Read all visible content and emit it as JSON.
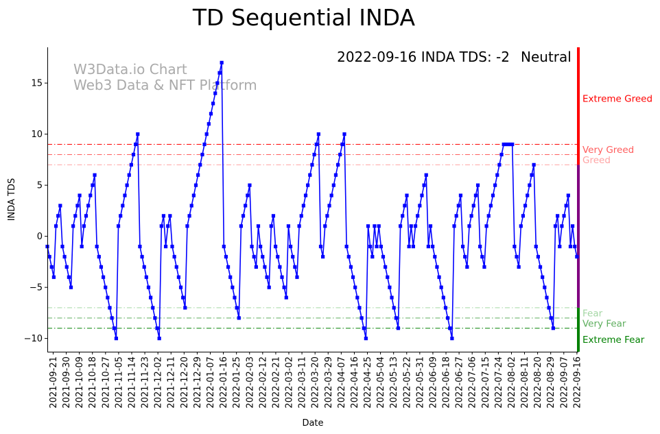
{
  "chart_data": {
    "type": "line",
    "title": "TD Sequential INDA",
    "xlabel": "Date",
    "ylabel": "INDA TDS",
    "status_text": "2022-09-16 INDA TDS: -2",
    "status_label": "Neutral",
    "status_color": "#800080",
    "watermark": [
      "W3Data.io Chart",
      "Web3 Data & NFT Platform"
    ],
    "x_start": "2021-09-17",
    "x_end": "2022-09-16",
    "xlim": [
      "2021-09-17",
      "2022-09-17"
    ],
    "ylim": [
      -11.3,
      18.5
    ],
    "yticks": [
      -10,
      -5,
      0,
      5,
      10,
      15
    ],
    "xtick_labels": [
      "2021-09-21",
      "2021-09-30",
      "2021-10-09",
      "2021-10-18",
      "2021-10-27",
      "2021-11-05",
      "2021-11-14",
      "2021-11-23",
      "2021-12-02",
      "2021-12-11",
      "2021-12-20",
      "2021-12-29",
      "2022-01-07",
      "2022-01-16",
      "2022-01-25",
      "2022-02-03",
      "2022-02-12",
      "2022-02-21",
      "2022-03-02",
      "2022-03-11",
      "2022-03-20",
      "2022-03-29",
      "2022-04-07",
      "2022-04-16",
      "2022-04-25",
      "2022-05-04",
      "2022-05-13",
      "2022-05-22",
      "2022-05-31",
      "2022-06-09",
      "2022-06-18",
      "2022-06-27",
      "2022-07-06",
      "2022-07-15",
      "2022-07-24",
      "2022-08-02",
      "2022-08-11",
      "2022-08-20",
      "2022-08-29",
      "2022-09-07",
      "2022-09-16"
    ],
    "levels": [
      {
        "label": "Extreme Greed",
        "value": 9,
        "color": "#ff0000",
        "opacity": 1.0,
        "label_y": 13.5
      },
      {
        "label": "Very Greed",
        "value": 8,
        "color": "#ff3333",
        "opacity": 0.8,
        "label_y": 8.5
      },
      {
        "label": "Greed",
        "value": 7,
        "color": "#ff6666",
        "opacity": 0.6,
        "label_y": 7.5
      },
      {
        "label": "Fear",
        "value": -7,
        "color": "#66bb66",
        "opacity": 0.6,
        "label_y": -7.5
      },
      {
        "label": "Very Fear",
        "value": -8,
        "color": "#339933",
        "opacity": 0.8,
        "label_y": -8.5
      },
      {
        "label": "Extreme Fear",
        "value": -9,
        "color": "#008000",
        "opacity": 1.0,
        "label_y": -10.1
      }
    ],
    "right_bar": [
      {
        "from": 7,
        "to": 18.5,
        "color": "#ff0000"
      },
      {
        "from": -7,
        "to": 7,
        "color": "#800080"
      },
      {
        "from": -11.3,
        "to": -7,
        "color": "#008000"
      }
    ],
    "series": [
      {
        "color": "#0000ff",
        "values": [
          -1,
          -2,
          -3,
          -4,
          1,
          2,
          3,
          -1,
          -2,
          -3,
          -4,
          -5,
          1,
          2,
          3,
          4,
          -1,
          1,
          2,
          3,
          4,
          5,
          6,
          -1,
          -2,
          -3,
          -4,
          -5,
          -6,
          -7,
          -8,
          -9,
          -10,
          1,
          2,
          3,
          4,
          5,
          6,
          7,
          8,
          9,
          10,
          -1,
          -2,
          -3,
          -4,
          -5,
          -6,
          -7,
          -8,
          -9,
          -10,
          1,
          2,
          -1,
          1,
          2,
          -1,
          -2,
          -3,
          -4,
          -5,
          -6,
          -7,
          1,
          2,
          3,
          4,
          5,
          6,
          7,
          8,
          9,
          10,
          11,
          12,
          13,
          14,
          15,
          16,
          17,
          -1,
          -2,
          -3,
          -4,
          -5,
          -6,
          -7,
          -8,
          1,
          2,
          3,
          4,
          5,
          -1,
          -2,
          -3,
          1,
          -1,
          -2,
          -3,
          -4,
          -5,
          1,
          2,
          -1,
          -2,
          -3,
          -4,
          -5,
          -6,
          1,
          -1,
          -2,
          -3,
          -4,
          1,
          2,
          3,
          4,
          5,
          6,
          7,
          8,
          9,
          10,
          -1,
          -2,
          1,
          2,
          3,
          4,
          5,
          6,
          7,
          8,
          9,
          10,
          -1,
          -2,
          -3,
          -4,
          -5,
          -6,
          -7,
          -8,
          -9,
          -10,
          1,
          -1,
          -2,
          1,
          -1,
          1,
          -1,
          -2,
          -3,
          -4,
          -5,
          -6,
          -7,
          -8,
          -9,
          1,
          2,
          3,
          4,
          -1,
          1,
          -1,
          1,
          2,
          3,
          4,
          5,
          6,
          -1,
          1,
          -1,
          -2,
          -3,
          -4,
          -5,
          -6,
          -7,
          -8,
          -9,
          -10,
          1,
          2,
          3,
          4,
          -1,
          -2,
          -3,
          1,
          2,
          3,
          4,
          5,
          -1,
          -2,
          -3,
          1,
          2,
          3,
          4,
          5,
          6,
          7,
          8,
          9,
          9,
          9,
          9,
          9,
          -1,
          -2,
          -3,
          1,
          2,
          3,
          4,
          5,
          6,
          7,
          -1,
          -2,
          -3,
          -4,
          -5,
          -6,
          -7,
          -8,
          -9,
          1,
          2,
          -1,
          1,
          2,
          3,
          4,
          -1,
          1,
          -1,
          -2
        ]
      }
    ]
  }
}
